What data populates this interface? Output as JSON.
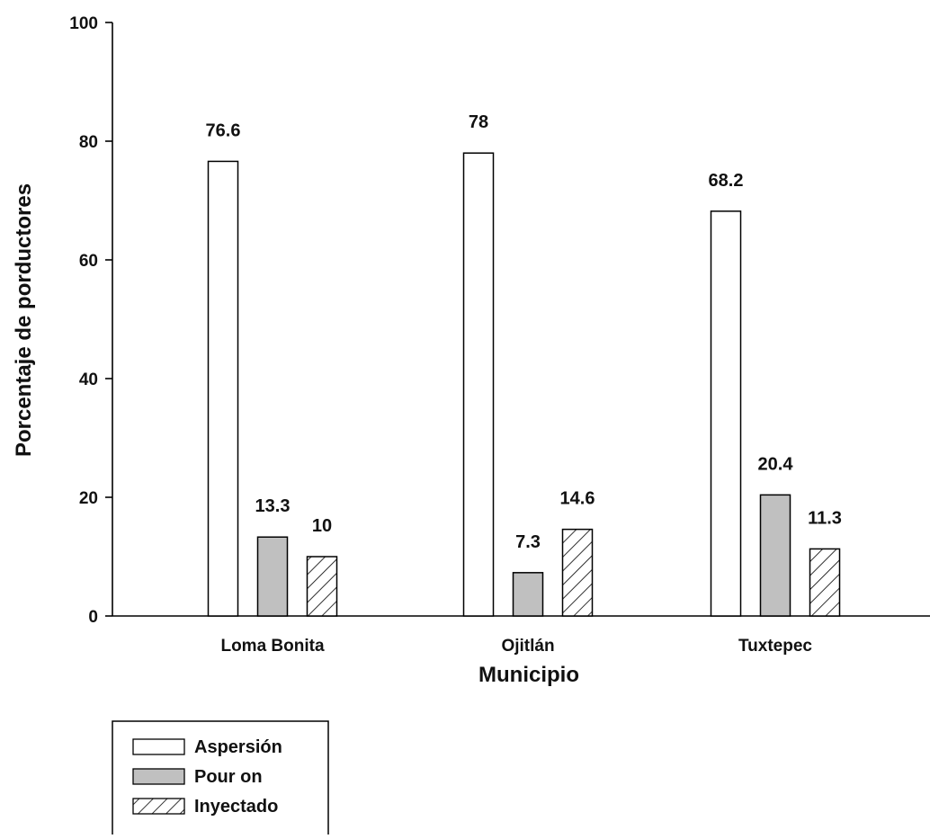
{
  "colors": {
    "axis": "#000000",
    "bar_stroke": "#000000",
    "Aspersion_fill": "#ffffff",
    "Pour_on_fill": "#c0c0c0",
    "Inyectado_fill": "hatch"
  },
  "chart_data": {
    "type": "bar",
    "title": "",
    "xlabel": "Municipio",
    "ylabel": "Porcentaje de porductores",
    "ylim": [
      0,
      100
    ],
    "yticks": [
      0,
      20,
      40,
      60,
      80,
      100
    ],
    "categories": [
      "Loma Bonita",
      "Ojitlán",
      "Tuxtepec"
    ],
    "series": [
      {
        "name": "Aspersión",
        "values": [
          76.6,
          78,
          68.2
        ],
        "labels": [
          "76.6",
          "78",
          "68.2"
        ]
      },
      {
        "name": "Pour on",
        "values": [
          13.3,
          7.3,
          20.4
        ],
        "labels": [
          "13.3",
          "7.3",
          "20.4"
        ]
      },
      {
        "name": "Inyectado",
        "values": [
          10,
          14.6,
          11.3
        ],
        "labels": [
          "10",
          "14.6",
          "11.3"
        ]
      }
    ],
    "grid": false,
    "legend": "bottom-left"
  }
}
